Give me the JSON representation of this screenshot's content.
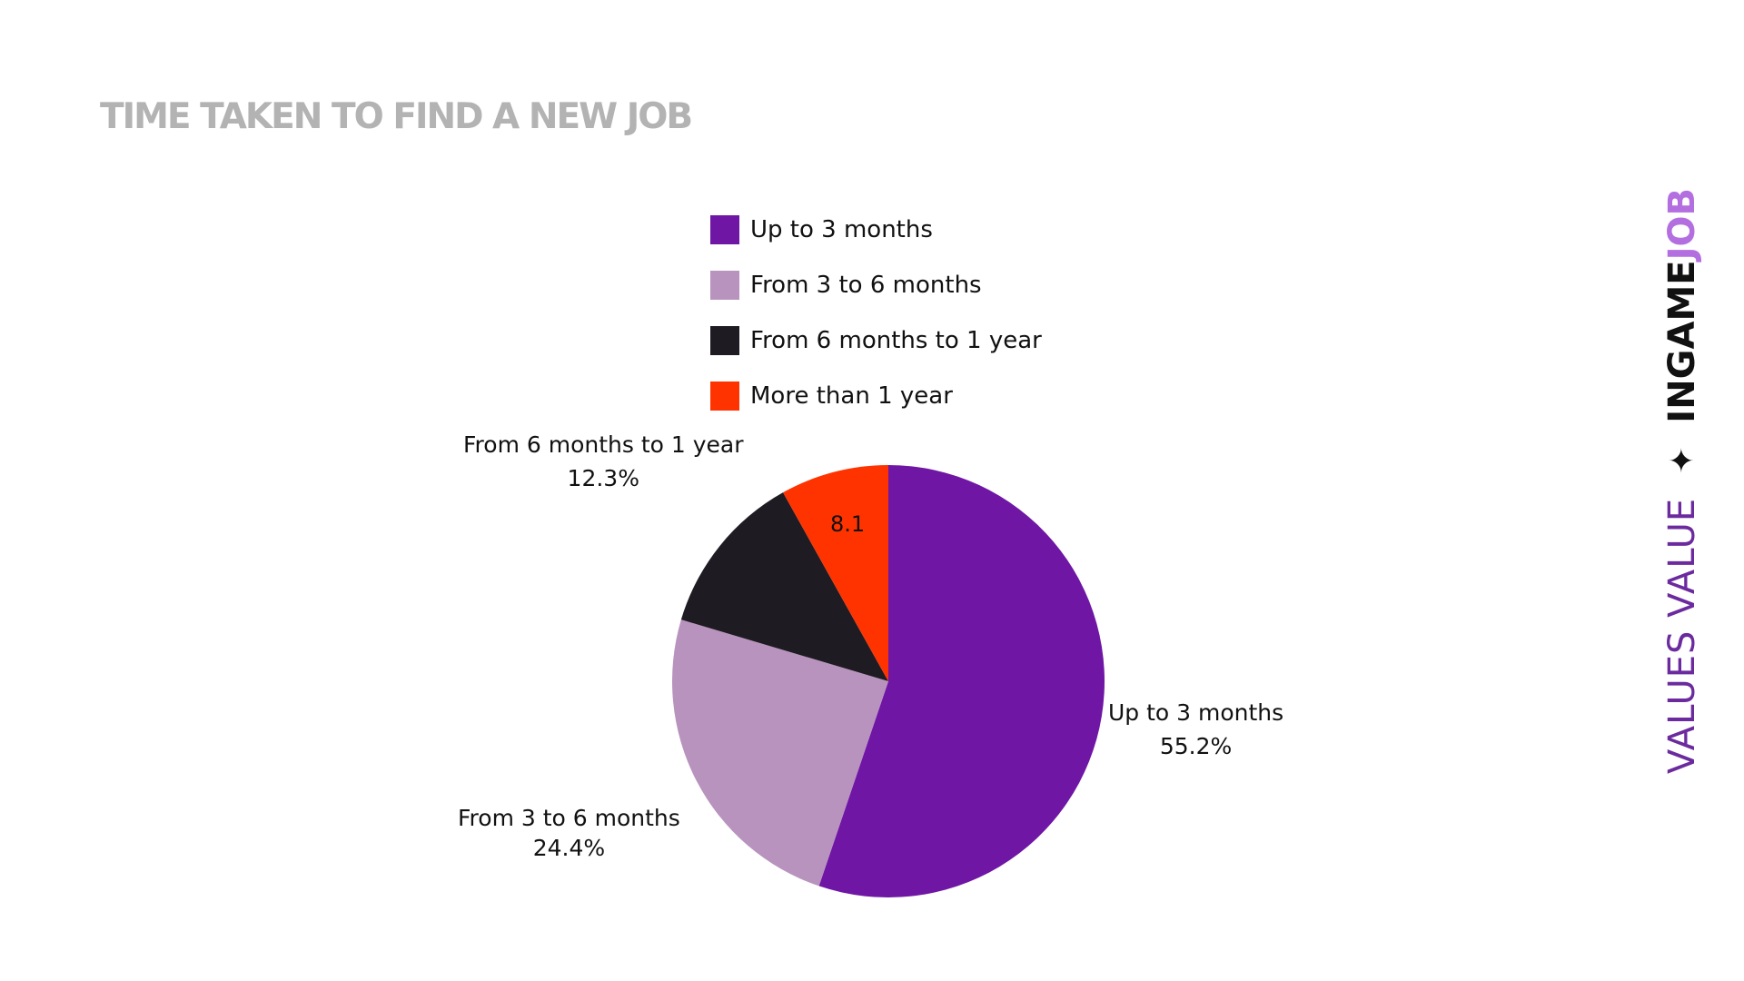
{
  "chart_data": {
    "type": "pie",
    "title": "TIME TAKEN TO FIND A NEW JOB",
    "legend_position": "top",
    "slices": [
      {
        "label": "Up to 3 months",
        "value": 55.2,
        "display": "55.2%",
        "color": "#6f16a5"
      },
      {
        "label": "From 3 to 6 months",
        "value": 24.4,
        "display": "24.4%",
        "color": "#b893be"
      },
      {
        "label": "From 6 months to 1 year",
        "value": 12.3,
        "display": "12.3%",
        "color": "#1e1b22"
      },
      {
        "label": "More than 1 year",
        "value": 8.1,
        "display": "8.1",
        "color": "#ff3300"
      }
    ]
  },
  "brand": {
    "tagline": "VALUES VALUE",
    "star": "✦",
    "name_part1": "INGAME",
    "name_part2": "JOB"
  }
}
